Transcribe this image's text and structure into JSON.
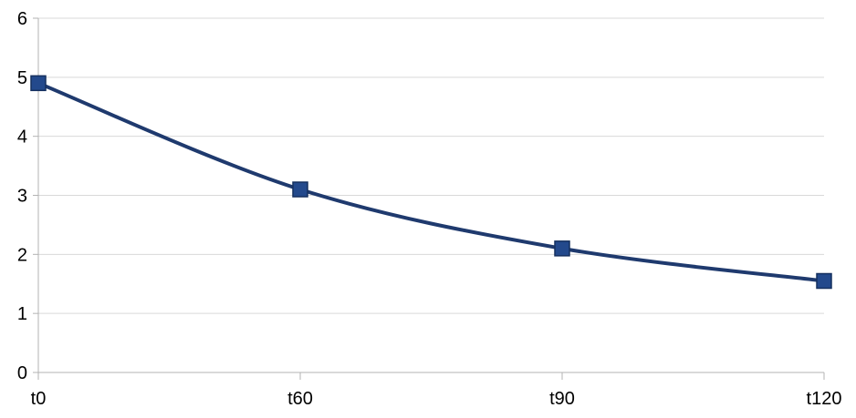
{
  "chart_data": {
    "type": "line",
    "categories": [
      "t0",
      "t60",
      "t90",
      "t120"
    ],
    "series": [
      {
        "values": [
          4.9,
          3.1,
          2.1,
          1.55
        ]
      }
    ],
    "title": "",
    "xlabel": "",
    "ylabel": "",
    "ylim": [
      0,
      6
    ],
    "yticks": [
      "0",
      "1",
      "2",
      "3",
      "4",
      "5",
      "6"
    ],
    "grid": true,
    "marker": "square",
    "smooth": true,
    "line_color": "#1f3a6e",
    "marker_color": "#23498c",
    "grid_color": "#d9d9d9",
    "axis_color": "#b3b3b3"
  }
}
